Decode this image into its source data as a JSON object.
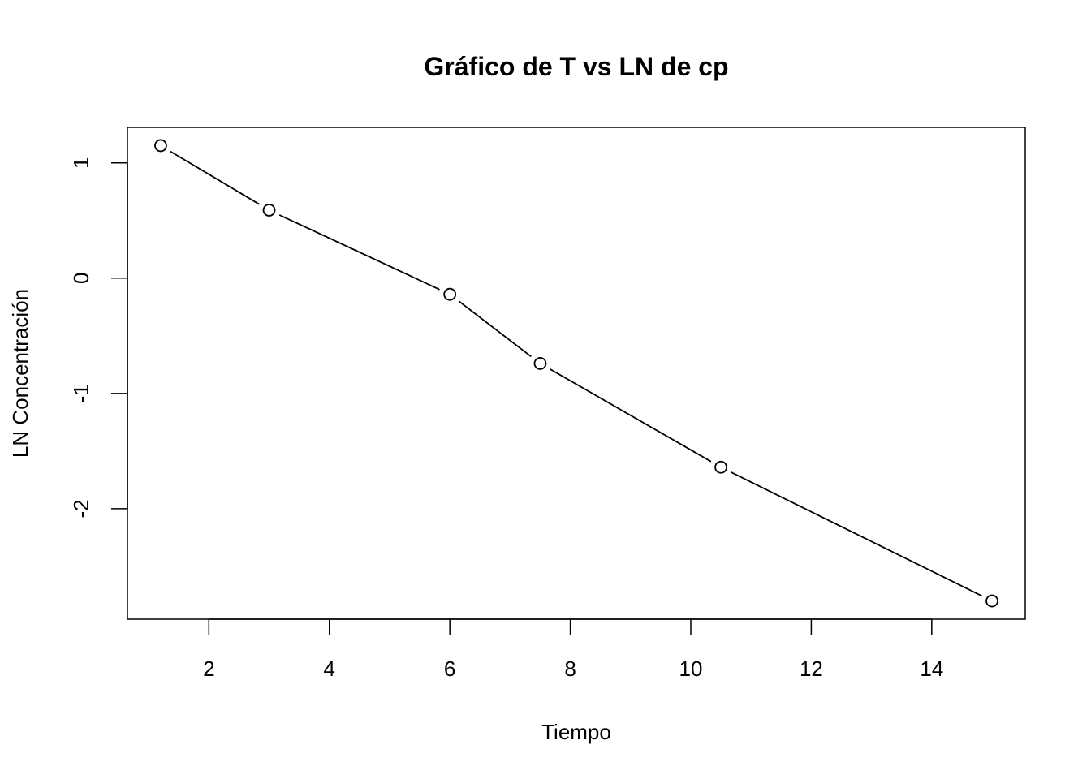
{
  "chart_data": {
    "type": "line",
    "title": "Gráfico de T vs LN de cp",
    "xlabel": "Tiempo",
    "ylabel": "LN Concentración",
    "x": [
      1.2,
      3,
      6,
      7.5,
      10.5,
      15
    ],
    "y": [
      1.15,
      0.59,
      -0.14,
      -0.74,
      -1.64,
      -2.8
    ],
    "xlim": [
      0.648,
      15.552
    ],
    "ylim": [
      -2.958,
      1.308
    ],
    "xticks": [
      2,
      4,
      6,
      8,
      10,
      12,
      14
    ],
    "yticks": [
      -2,
      -1,
      0,
      1
    ],
    "xtick_labels": [
      "2",
      "4",
      "6",
      "8",
      "10",
      "12",
      "14"
    ],
    "ytick_labels": [
      "-2",
      "-1",
      "0",
      "1"
    ],
    "marker": "open-circle",
    "line_style": "solid-with-gaps",
    "grid": false,
    "colors": {
      "line": "#000000",
      "marker": "#000000"
    }
  }
}
